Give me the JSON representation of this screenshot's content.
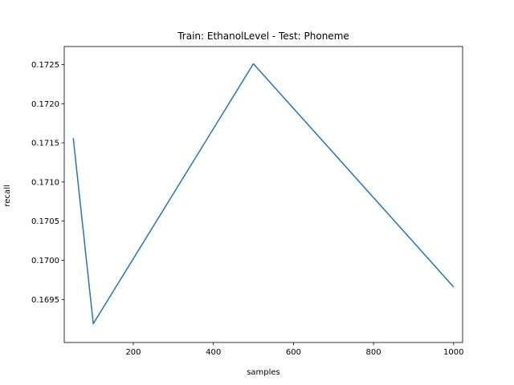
{
  "chart_data": {
    "type": "line",
    "title": "Train: EthanolLevel - Test: Phoneme",
    "xlabel": "samples",
    "ylabel": "recall",
    "xlim": [
      27.5,
      1022.5
    ],
    "ylim": [
      0.16895,
      0.17273
    ],
    "xticks": [
      200,
      400,
      600,
      800,
      1000
    ],
    "xtick_labels": [
      "200",
      "400",
      "600",
      "800",
      "1000"
    ],
    "yticks": [
      0.1695,
      0.17,
      0.1705,
      0.171,
      0.1715,
      0.172,
      0.1725
    ],
    "ytick_labels": [
      "0.1695",
      "0.1700",
      "0.1705",
      "0.1710",
      "0.1715",
      "0.1720",
      "0.1725"
    ],
    "grid": false,
    "series": [
      {
        "color": "#1f77b4",
        "x": [
          50,
          100,
          500,
          1000
        ],
        "y": [
          0.17156,
          0.16919,
          0.17251,
          0.16966
        ]
      }
    ]
  }
}
